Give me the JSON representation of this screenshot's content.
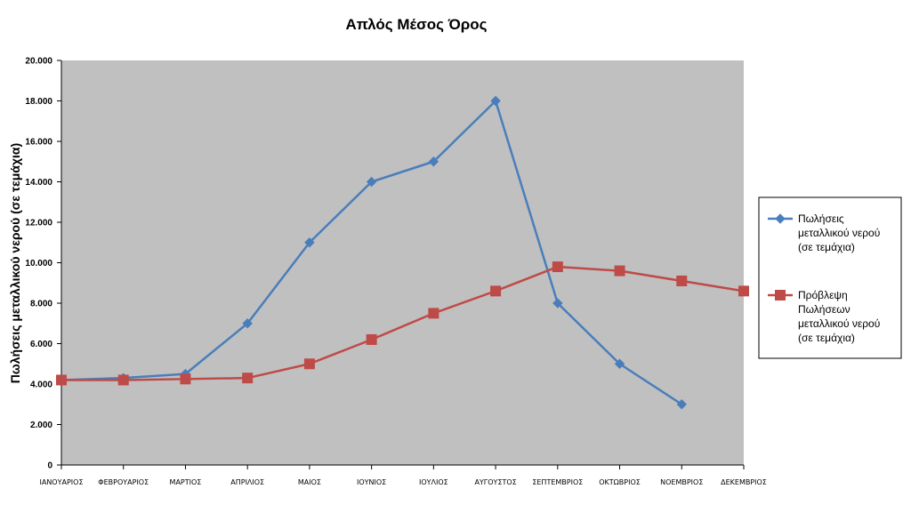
{
  "chart_data": {
    "type": "line",
    "title": "Απλός Μέσος Όρος",
    "xlabel": "",
    "ylabel": "Πωλήσεις μεταλλικού νερού (σε τεμάχια)",
    "ylim": [
      0,
      20000
    ],
    "yticks": [
      "0",
      "2.000",
      "4.000",
      "6.000",
      "8.000",
      "10.000",
      "12.000",
      "14.000",
      "16.000",
      "18.000",
      "20.000"
    ],
    "categories": [
      "ΙΑΝΟΥΑΡΙΟΣ",
      "ΦΕΒΡΟΥΑΡΙΟΣ",
      "ΜΑΡΤΙΟΣ",
      "ΑΠΡΙΛΙΟΣ",
      "ΜΑΙΟΣ",
      "ΙΟΥΝΙΟΣ",
      "ΙΟΥΛΙΟΣ",
      "ΑΥΓΟΥΣΤΟΣ",
      "ΣΕΠΤΕΜΒΡΙΟΣ",
      "ΟΚΤΩΒΡΙΟΣ",
      "ΝΟΕΜΒΡΙΟΣ",
      "ΔΕΚΕΜΒΡΙΟΣ"
    ],
    "series": [
      {
        "name": "Πωλήσεις μεταλλικού νερού (σε τεμάχια)",
        "legend_lines": [
          "Πωλήσεις",
          "μεταλλικού νερού",
          "(σε τεμάχια)"
        ],
        "color": "#4a7ebb",
        "marker": "diamond",
        "values": [
          4200,
          4300,
          4500,
          7000,
          11000,
          14000,
          15000,
          18000,
          8000,
          5000,
          3000,
          null
        ]
      },
      {
        "name": "Πρόβλεψη Πωλήσεων μεταλλικού νερού (σε τεμάχια)",
        "legend_lines": [
          "Πρόβλεψη",
          "Πωλήσεων",
          "μεταλλικού νερού",
          "(σε τεμάχια)"
        ],
        "color": "#be4b48",
        "marker": "square",
        "values": [
          4200,
          4200,
          4250,
          4300,
          5000,
          6200,
          7500,
          8600,
          9800,
          9600,
          9100,
          8600
        ]
      }
    ],
    "grid": false,
    "plot_background": "#c0c0c0",
    "legend_position": "right"
  }
}
